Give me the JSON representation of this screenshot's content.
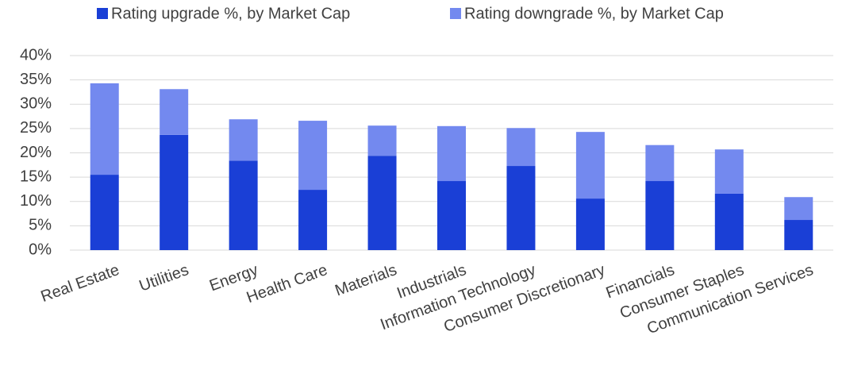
{
  "chart_data": {
    "type": "stacked_bar",
    "categories": [
      "Real Estate",
      "Utilities",
      "Energy",
      "Health Care",
      "Materials",
      "Industrials",
      "Information Technology",
      "Consumer Discretionary",
      "Financials",
      "Consumer Staples",
      "Communication Services"
    ],
    "series": [
      {
        "name": "Rating upgrade %, by Market Cap",
        "color": "#1a3fd6",
        "values": [
          15.5,
          23.7,
          18.4,
          12.4,
          19.4,
          14.2,
          17.3,
          10.6,
          14.2,
          11.6,
          6.2
        ]
      },
      {
        "name": "Rating downgrade %, by Market Cap",
        "color": "#7389ef",
        "values": [
          18.8,
          9.4,
          8.5,
          14.2,
          6.2,
          11.3,
          7.8,
          13.7,
          7.4,
          9.1,
          4.7
        ]
      }
    ],
    "ylim": [
      0,
      40
    ],
    "yticks": [
      {
        "value": 0,
        "label": "0%"
      },
      {
        "value": 5,
        "label": "5%"
      },
      {
        "value": 10,
        "label": "10%"
      },
      {
        "value": 15,
        "label": "15%"
      },
      {
        "value": 20,
        "label": "20%"
      },
      {
        "value": 25,
        "label": "25%"
      },
      {
        "value": 30,
        "label": "30%"
      },
      {
        "value": 35,
        "label": "35%"
      },
      {
        "value": 40,
        "label": "40%"
      }
    ],
    "grid": true,
    "legend": "top"
  }
}
